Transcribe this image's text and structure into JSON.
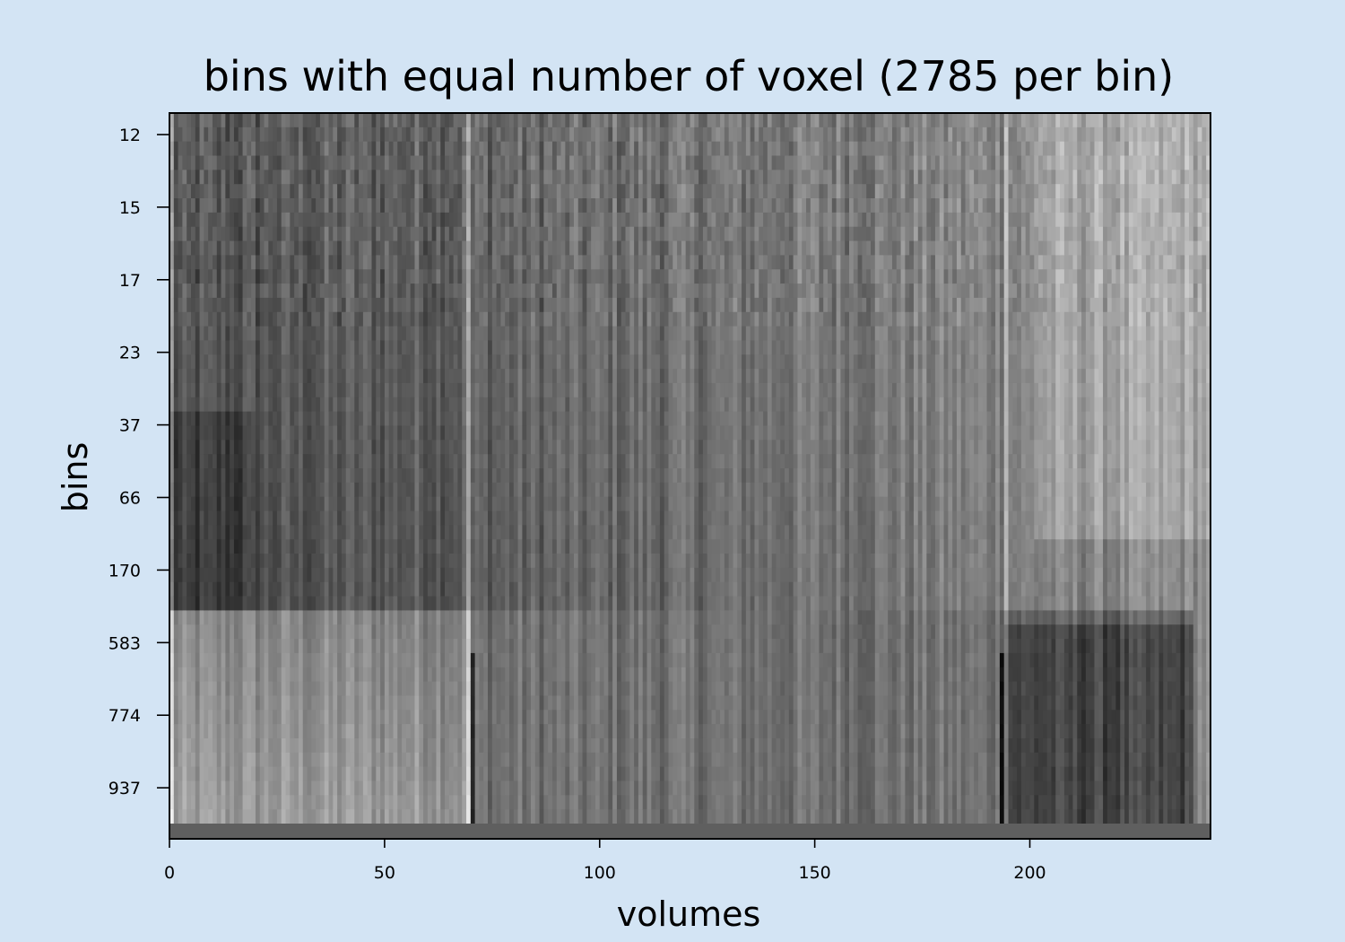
{
  "chart_data": {
    "type": "heatmap",
    "title": "bins with equal number of voxel (2785 per bin)",
    "xlabel": "volumes",
    "ylabel": "bins",
    "colormap": "gray",
    "x_ticks": [
      0,
      50,
      100,
      150,
      200
    ],
    "xlim": [
      0,
      242
    ],
    "y_tick_labels": [
      "12",
      "15",
      "17",
      "23",
      "37",
      "66",
      "170",
      "583",
      "774",
      "937"
    ],
    "n_bins": 50,
    "n_volumes": 242,
    "bright_columns": [
      0,
      69,
      194
    ],
    "dark_columns": [
      70,
      193
    ],
    "regions": {
      "low_bins_early_volumes": "dark",
      "high_bins_early_volumes": "light",
      "high_bins_late_volumes": "dark",
      "low_bins_late_volumes": "light"
    },
    "colors": {
      "background": "#d3e4f4",
      "bottom_band": "#5f5f5f"
    }
  }
}
